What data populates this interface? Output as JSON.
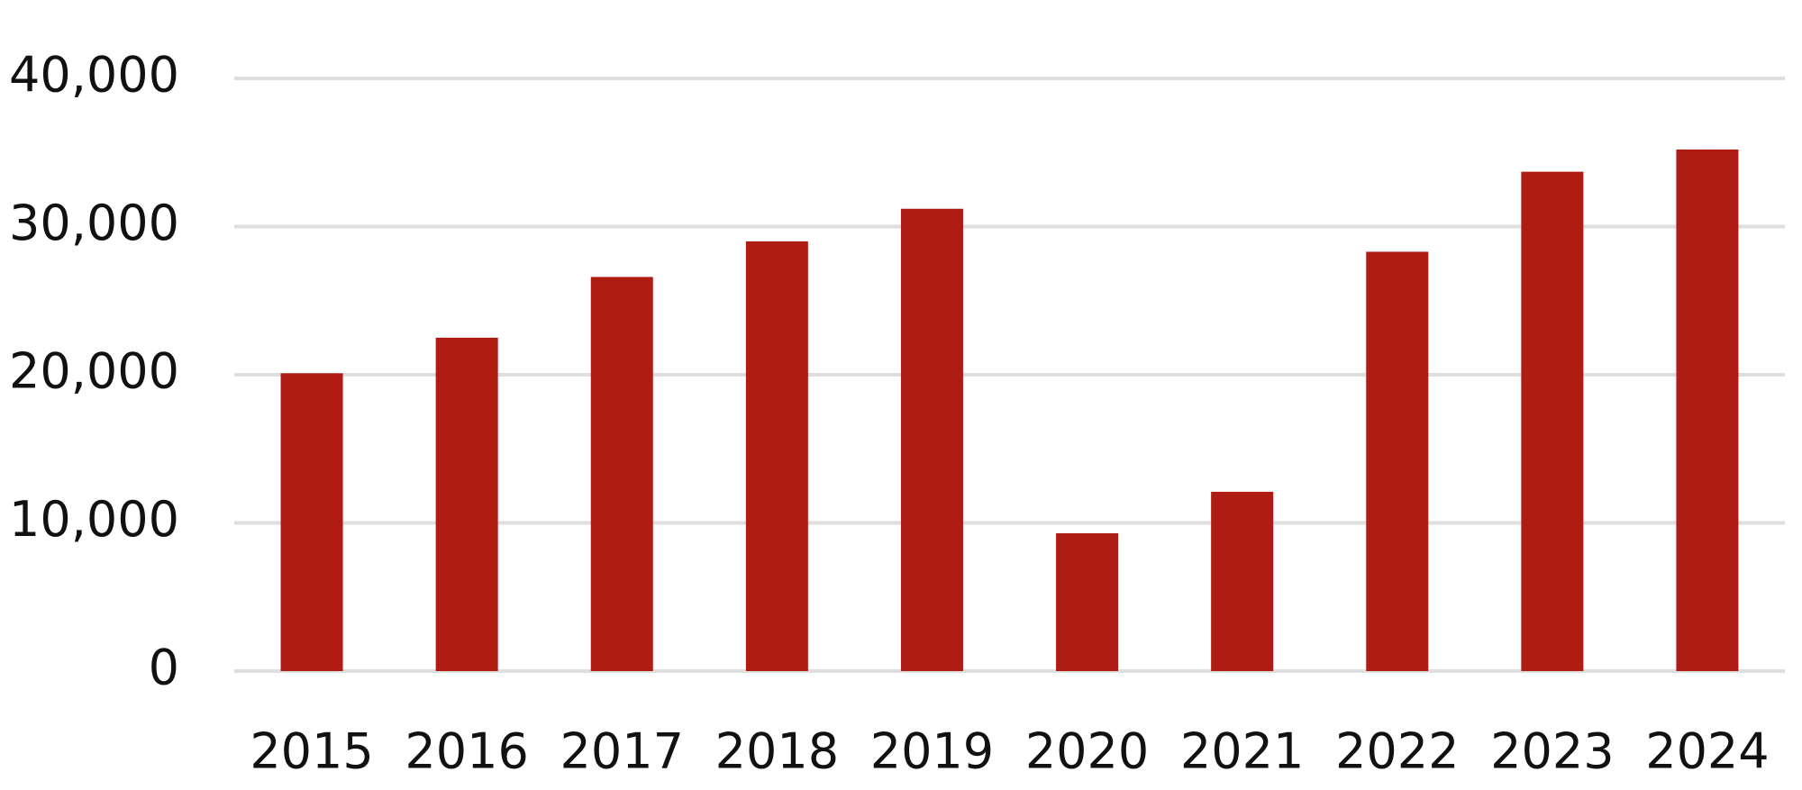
{
  "chart_data": {
    "type": "bar",
    "categories": [
      "2015",
      "2016",
      "2017",
      "2018",
      "2019",
      "2020",
      "2021",
      "2022",
      "2023",
      "2024"
    ],
    "values": [
      20100,
      22500,
      26600,
      29000,
      31200,
      9300,
      12100,
      28300,
      33700,
      35200
    ],
    "color": "#ae1c14",
    "ylim": [
      0,
      40000
    ],
    "yticks": [
      0,
      {
        "value": 10000,
        "label": "10,000"
      },
      {
        "value": 20000,
        "label": "20,000"
      },
      {
        "value": 30000,
        "label": "30,000"
      },
      {
        "value": 40000,
        "label": "40,000"
      }
    ],
    "grid": true
  }
}
